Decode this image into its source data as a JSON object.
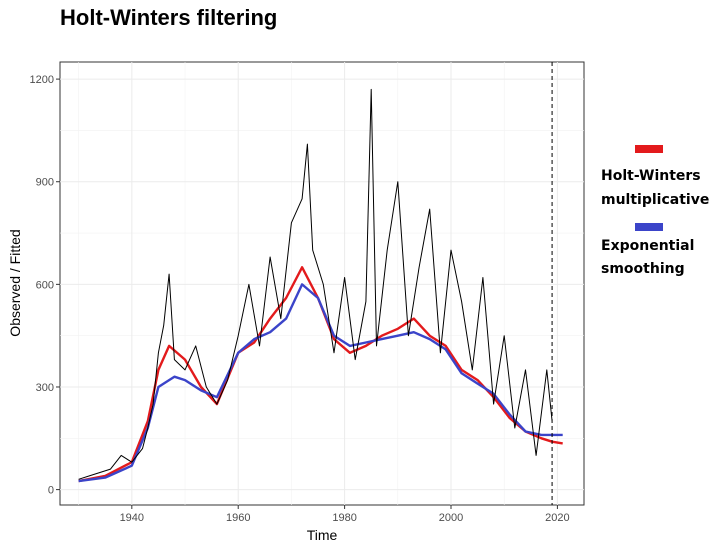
{
  "chart_data": {
    "type": "line",
    "title": "Holt-Winters filtering",
    "xlabel": "Time",
    "ylabel": "Observed / Fitted",
    "xlim": [
      1926.5,
      2025
    ],
    "ylim": [
      -45,
      1250
    ],
    "x_ticks": [
      1940,
      1960,
      1980,
      2000,
      2020
    ],
    "y_ticks": [
      0,
      300,
      600,
      900,
      1200
    ],
    "grid": true,
    "legend_position": "right",
    "forecast_start": 2019,
    "series": [
      {
        "name": "Observed",
        "color": "#000000",
        "x": [
          1930,
          1932,
          1934,
          1936,
          1938,
          1940,
          1942,
          1943,
          1944,
          1945,
          1946,
          1947,
          1948,
          1950,
          1952,
          1954,
          1956,
          1958,
          1960,
          1962,
          1964,
          1966,
          1968,
          1970,
          1972,
          1973,
          1974,
          1976,
          1978,
          1980,
          1982,
          1984,
          1985,
          1986,
          1988,
          1990,
          1992,
          1994,
          1996,
          1998,
          2000,
          2002,
          2004,
          2006,
          2008,
          2010,
          2012,
          2014,
          2016,
          2018,
          2019
        ],
        "y": [
          30,
          40,
          50,
          60,
          100,
          80,
          120,
          180,
          250,
          400,
          480,
          630,
          380,
          350,
          420,
          300,
          250,
          320,
          450,
          600,
          420,
          680,
          500,
          780,
          850,
          1010,
          700,
          600,
          400,
          620,
          380,
          550,
          1170,
          420,
          700,
          900,
          450,
          650,
          820,
          400,
          700,
          550,
          350,
          620,
          250,
          450,
          180,
          350,
          100,
          350,
          200
        ]
      },
      {
        "name": "Holt-Winters multiplicative",
        "color": "#e31a1c",
        "x": [
          1930,
          1935,
          1940,
          1943,
          1945,
          1947,
          1950,
          1953,
          1956,
          1960,
          1963,
          1966,
          1969,
          1972,
          1975,
          1978,
          1981,
          1984,
          1987,
          1990,
          1993,
          1996,
          1999,
          2002,
          2005,
          2008,
          2011,
          2014,
          2017,
          2019,
          2021
        ],
        "y": [
          25,
          40,
          80,
          200,
          350,
          420,
          380,
          300,
          250,
          400,
          430,
          500,
          560,
          650,
          560,
          440,
          400,
          420,
          450,
          470,
          500,
          450,
          420,
          350,
          320,
          270,
          210,
          170,
          150,
          140,
          135
        ]
      },
      {
        "name": "Exponential smoothing",
        "color": "#3b44c9",
        "x": [
          1930,
          1935,
          1940,
          1943,
          1945,
          1948,
          1950,
          1953,
          1956,
          1960,
          1963,
          1966,
          1969,
          1972,
          1975,
          1978,
          1981,
          1984,
          1987,
          1990,
          1993,
          1996,
          1999,
          2002,
          2005,
          2008,
          2011,
          2014,
          2017,
          2019,
          2021
        ],
        "y": [
          25,
          35,
          70,
          180,
          300,
          330,
          320,
          290,
          270,
          400,
          440,
          460,
          500,
          600,
          560,
          450,
          420,
          430,
          440,
          450,
          460,
          440,
          410,
          340,
          310,
          280,
          220,
          170,
          160,
          160,
          160
        ]
      }
    ],
    "legend": [
      {
        "label_line1": "Holt-Winters",
        "label_line2": "multiplicative",
        "color": "#e31a1c"
      },
      {
        "label_line1": "Exponential",
        "label_line2": "smoothing",
        "color": "#3b44c9"
      }
    ]
  }
}
